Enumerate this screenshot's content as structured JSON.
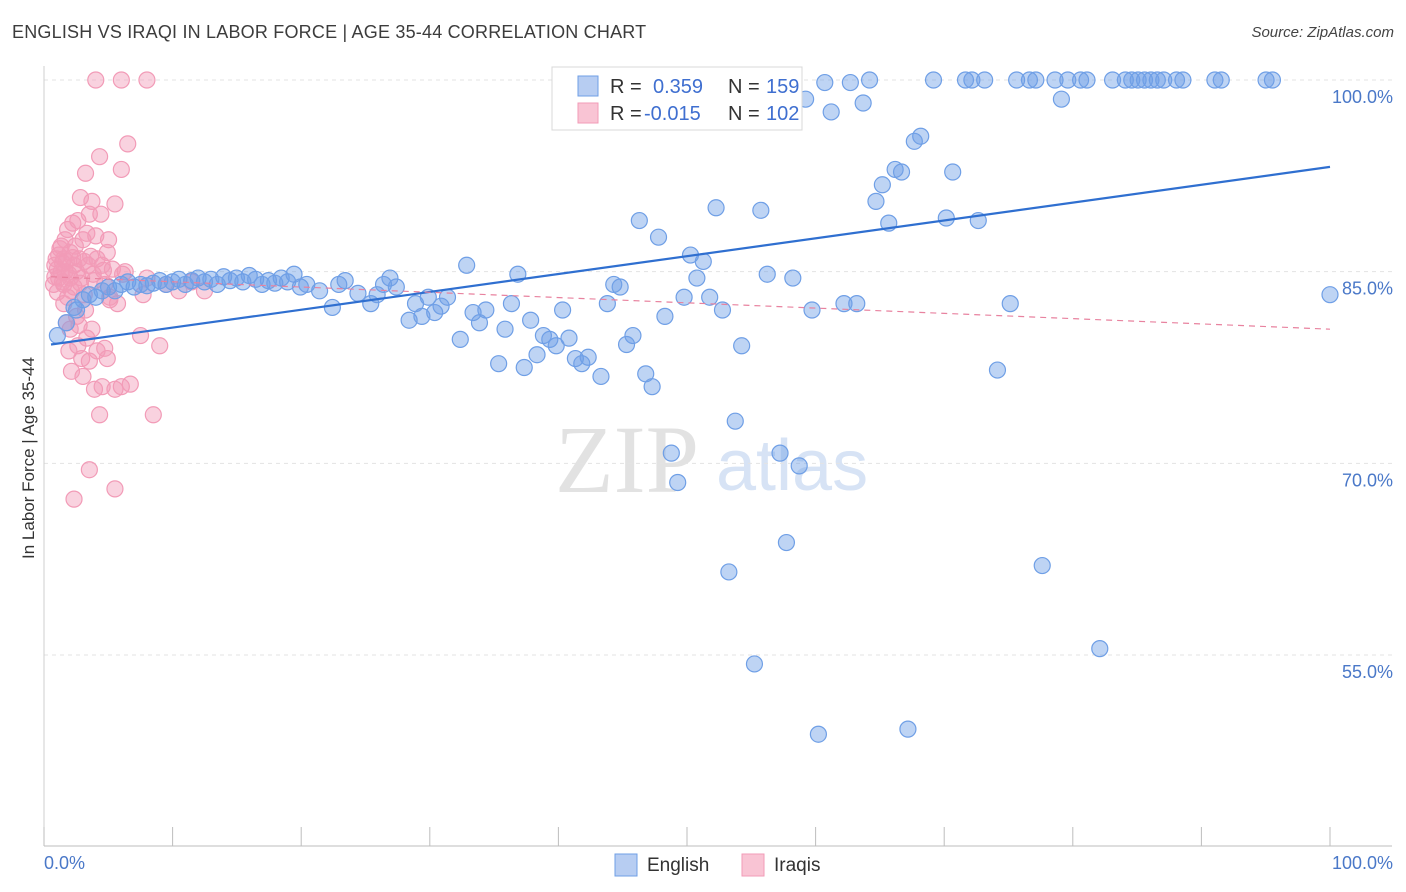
{
  "title": "ENGLISH VS IRAQI IN LABOR FORCE | AGE 35-44 CORRELATION CHART",
  "source": "Source: ZipAtlas.com",
  "watermark": {
    "zip": "ZIP",
    "atlas": "atlas"
  },
  "colors": {
    "english": "#6f9fe6",
    "iraqis": "#f29bb7",
    "english_line": "#2f6fd0",
    "iraqis_line": "#e8829f",
    "axis_label": "#4a78c8"
  },
  "chart_data": {
    "type": "scatter",
    "title": "ENGLISH VS IRAQI IN LABOR FORCE | AGE 35-44 CORRELATION CHART",
    "xlabel": "",
    "ylabel": "In Labor Force | Age 35-44",
    "xlim": [
      0,
      100
    ],
    "ylim": [
      40,
      101.5
    ],
    "x_tick_labels": [
      "0.0%",
      "100.0%"
    ],
    "y_ticks": [
      55,
      70,
      85,
      100
    ],
    "y_tick_labels": [
      "55.0%",
      "70.0%",
      "85.0%",
      "100.0%"
    ],
    "legend": [
      {
        "name": "English",
        "r_label": "R =",
        "r": "0.359",
        "n_label": "N =",
        "n": "159"
      },
      {
        "name": "Iraqis",
        "r_label": "R =",
        "r": "-0.015",
        "n_label": "N =",
        "n": "102"
      }
    ],
    "series": [
      {
        "name": "English",
        "trendline": {
          "x": [
            0,
            100
          ],
          "y": [
            79.3,
            93.2
          ]
        },
        "points": [
          [
            0.5,
            80.0
          ],
          [
            1.2,
            81.0
          ],
          [
            1.8,
            82.2
          ],
          [
            2.0,
            82.0
          ],
          [
            2.5,
            82.8
          ],
          [
            3.0,
            83.2
          ],
          [
            3.5,
            83.0
          ],
          [
            4.0,
            83.5
          ],
          [
            4.5,
            83.8
          ],
          [
            5.0,
            83.5
          ],
          [
            5.5,
            84.0
          ],
          [
            6.0,
            84.2
          ],
          [
            6.5,
            83.8
          ],
          [
            7.0,
            84.0
          ],
          [
            7.5,
            83.9
          ],
          [
            8.0,
            84.1
          ],
          [
            8.5,
            84.3
          ],
          [
            9.0,
            84.0
          ],
          [
            9.5,
            84.2
          ],
          [
            10.0,
            84.4
          ],
          [
            10.5,
            84.0
          ],
          [
            11.0,
            84.3
          ],
          [
            11.5,
            84.5
          ],
          [
            12.0,
            84.2
          ],
          [
            12.5,
            84.4
          ],
          [
            13.0,
            84.0
          ],
          [
            13.5,
            84.6
          ],
          [
            14.0,
            84.3
          ],
          [
            14.5,
            84.5
          ],
          [
            15.0,
            84.2
          ],
          [
            15.5,
            84.7
          ],
          [
            16.0,
            84.4
          ],
          [
            16.5,
            84.0
          ],
          [
            17.0,
            84.3
          ],
          [
            17.5,
            84.1
          ],
          [
            18.0,
            84.5
          ],
          [
            18.5,
            84.2
          ],
          [
            19.0,
            84.8
          ],
          [
            19.5,
            83.8
          ],
          [
            20.0,
            84.0
          ],
          [
            21.0,
            83.5
          ],
          [
            22.0,
            82.2
          ],
          [
            22.5,
            84.0
          ],
          [
            23.0,
            84.3
          ],
          [
            24.0,
            83.3
          ],
          [
            25.0,
            82.5
          ],
          [
            25.5,
            83.2
          ],
          [
            26.0,
            84.0
          ],
          [
            26.5,
            84.5
          ],
          [
            27.0,
            83.8
          ],
          [
            28.0,
            81.2
          ],
          [
            28.5,
            82.5
          ],
          [
            29.0,
            81.5
          ],
          [
            29.5,
            83.0
          ],
          [
            30.0,
            81.8
          ],
          [
            30.5,
            82.3
          ],
          [
            31.0,
            83.0
          ],
          [
            32.0,
            79.7
          ],
          [
            32.5,
            85.5
          ],
          [
            33.0,
            81.8
          ],
          [
            33.5,
            81.0
          ],
          [
            34.0,
            82.0
          ],
          [
            35.0,
            77.8
          ],
          [
            35.5,
            80.5
          ],
          [
            36.0,
            82.5
          ],
          [
            36.5,
            84.8
          ],
          [
            37.0,
            77.5
          ],
          [
            37.5,
            81.2
          ],
          [
            38.0,
            78.5
          ],
          [
            38.5,
            80.0
          ],
          [
            39.0,
            79.7
          ],
          [
            39.5,
            79.2
          ],
          [
            40.0,
            82.0
          ],
          [
            40.5,
            79.8
          ],
          [
            41.0,
            78.2
          ],
          [
            41.5,
            77.8
          ],
          [
            42.0,
            78.3
          ],
          [
            43.0,
            76.8
          ],
          [
            43.5,
            82.5
          ],
          [
            44.0,
            84.0
          ],
          [
            44.5,
            83.8
          ],
          [
            45.0,
            79.3
          ],
          [
            45.5,
            80.0
          ],
          [
            46.0,
            89.0
          ],
          [
            46.5,
            77.0
          ],
          [
            47.0,
            76.0
          ],
          [
            47.5,
            87.7
          ],
          [
            48.0,
            81.5
          ],
          [
            48.5,
            70.8
          ],
          [
            49.0,
            68.5
          ],
          [
            49.5,
            83.0
          ],
          [
            50.0,
            86.3
          ],
          [
            50.5,
            84.5
          ],
          [
            51.0,
            85.8
          ],
          [
            51.5,
            83.0
          ],
          [
            52.0,
            90.0
          ],
          [
            52.5,
            82.0
          ],
          [
            53.0,
            61.5
          ],
          [
            53.5,
            73.3
          ],
          [
            54.0,
            79.2
          ],
          [
            55.0,
            54.3
          ],
          [
            55.5,
            89.8
          ],
          [
            56.0,
            84.8
          ],
          [
            57.0,
            70.8
          ],
          [
            57.5,
            63.8
          ],
          [
            58.0,
            84.5
          ],
          [
            58.5,
            69.8
          ],
          [
            59.0,
            98.5
          ],
          [
            59.5,
            82.0
          ],
          [
            60.0,
            48.8
          ],
          [
            60.5,
            99.8
          ],
          [
            61.0,
            97.5
          ],
          [
            62.0,
            82.5
          ],
          [
            62.5,
            99.8
          ],
          [
            63.0,
            82.5
          ],
          [
            63.5,
            98.2
          ],
          [
            64.0,
            100.0
          ],
          [
            64.5,
            90.5
          ],
          [
            65.0,
            91.8
          ],
          [
            65.5,
            88.8
          ],
          [
            66.0,
            93.0
          ],
          [
            66.5,
            92.8
          ],
          [
            67.0,
            49.2
          ],
          [
            67.5,
            95.2
          ],
          [
            68.0,
            95.6
          ],
          [
            69.0,
            100.0
          ],
          [
            70.0,
            89.2
          ],
          [
            70.5,
            92.8
          ],
          [
            71.5,
            100.0
          ],
          [
            72.0,
            100.0
          ],
          [
            72.5,
            89.0
          ],
          [
            73.0,
            100.0
          ],
          [
            74.0,
            77.3
          ],
          [
            75.0,
            82.5
          ],
          [
            75.5,
            100.0
          ],
          [
            76.5,
            100.0
          ],
          [
            77.0,
            100.0
          ],
          [
            77.5,
            62.0
          ],
          [
            78.5,
            100.0
          ],
          [
            79.0,
            98.5
          ],
          [
            79.5,
            100.0
          ],
          [
            80.5,
            100.0
          ],
          [
            81.0,
            100.0
          ],
          [
            82.0,
            55.5
          ],
          [
            83.0,
            100.0
          ],
          [
            84.0,
            100.0
          ],
          [
            84.5,
            100.0
          ],
          [
            85.0,
            100.0
          ],
          [
            85.5,
            100.0
          ],
          [
            86.0,
            100.0
          ],
          [
            86.5,
            100.0
          ],
          [
            87.0,
            100.0
          ],
          [
            88.0,
            100.0
          ],
          [
            88.5,
            100.0
          ],
          [
            91.0,
            100.0
          ],
          [
            91.5,
            100.0
          ],
          [
            95.0,
            100.0
          ],
          [
            95.5,
            100.0
          ],
          [
            100.0,
            83.2
          ]
        ]
      },
      {
        "name": "Iraqis",
        "trendline": {
          "x": [
            0,
            100
          ],
          "y": [
            84.6,
            80.5
          ]
        },
        "points": [
          [
            0.2,
            84.0
          ],
          [
            0.3,
            85.5
          ],
          [
            0.4,
            86.0
          ],
          [
            0.5,
            85.2
          ],
          [
            0.6,
            84.5
          ],
          [
            0.7,
            86.8
          ],
          [
            0.8,
            85.0
          ],
          [
            0.9,
            84.2
          ],
          [
            1.0,
            86.0
          ],
          [
            1.1,
            87.5
          ],
          [
            1.2,
            85.8
          ],
          [
            1.3,
            88.3
          ],
          [
            1.4,
            84.8
          ],
          [
            1.5,
            86.5
          ],
          [
            1.6,
            83.5
          ],
          [
            1.7,
            88.8
          ],
          [
            1.8,
            85.5
          ],
          [
            1.9,
            87.0
          ],
          [
            2.0,
            85.0
          ],
          [
            2.1,
            89.0
          ],
          [
            2.2,
            86.0
          ],
          [
            2.3,
            90.8
          ],
          [
            2.4,
            84.5
          ],
          [
            2.5,
            87.5
          ],
          [
            2.6,
            85.8
          ],
          [
            2.7,
            92.7
          ],
          [
            2.8,
            88.0
          ],
          [
            2.9,
            85.5
          ],
          [
            3.0,
            89.5
          ],
          [
            3.1,
            86.2
          ],
          [
            3.2,
            90.5
          ],
          [
            3.3,
            84.8
          ],
          [
            3.5,
            87.8
          ],
          [
            3.6,
            86.0
          ],
          [
            3.8,
            94.0
          ],
          [
            3.9,
            89.5
          ],
          [
            4.0,
            85.5
          ],
          [
            4.2,
            84.0
          ],
          [
            4.4,
            86.5
          ],
          [
            4.5,
            87.5
          ],
          [
            4.6,
            83.0
          ],
          [
            4.8,
            85.2
          ],
          [
            5.0,
            90.3
          ],
          [
            5.2,
            82.5
          ],
          [
            5.5,
            93.0
          ],
          [
            5.6,
            84.8
          ],
          [
            5.8,
            85.0
          ],
          [
            6.0,
            95.0
          ],
          [
            1.0,
            82.5
          ],
          [
            1.2,
            81.0
          ],
          [
            1.4,
            78.8
          ],
          [
            1.5,
            80.5
          ],
          [
            1.6,
            77.2
          ],
          [
            1.8,
            83.8
          ],
          [
            2.0,
            81.5
          ],
          [
            2.1,
            79.2
          ],
          [
            2.2,
            80.8
          ],
          [
            2.4,
            78.2
          ],
          [
            2.5,
            76.8
          ],
          [
            2.7,
            82.0
          ],
          [
            2.8,
            79.8
          ],
          [
            3.0,
            78.0
          ],
          [
            3.2,
            80.5
          ],
          [
            3.4,
            75.8
          ],
          [
            3.6,
            78.8
          ],
          [
            3.8,
            73.8
          ],
          [
            4.0,
            76.0
          ],
          [
            4.2,
            79.0
          ],
          [
            4.4,
            78.2
          ],
          [
            4.6,
            82.8
          ],
          [
            5.0,
            75.8
          ],
          [
            5.5,
            76.0
          ],
          [
            6.2,
            76.2
          ],
          [
            7.0,
            80.0
          ],
          [
            7.2,
            83.2
          ],
          [
            7.5,
            84.5
          ],
          [
            8.0,
            73.8
          ],
          [
            8.5,
            79.2
          ],
          [
            9.0,
            84.0
          ],
          [
            10.0,
            83.5
          ],
          [
            11.0,
            84.2
          ],
          [
            12.0,
            83.5
          ],
          [
            1.8,
            67.2
          ],
          [
            3.0,
            69.5
          ],
          [
            5.0,
            68.0
          ],
          [
            3.5,
            100.0
          ],
          [
            5.5,
            100.0
          ],
          [
            7.5,
            100.0
          ],
          [
            1.0,
            84.0
          ],
          [
            1.1,
            85.0
          ],
          [
            1.3,
            83.0
          ],
          [
            1.5,
            84.5
          ],
          [
            0.6,
            86.3
          ],
          [
            0.8,
            87.0
          ],
          [
            0.3,
            84.6
          ],
          [
            0.5,
            83.4
          ],
          [
            0.9,
            85.7
          ],
          [
            1.7,
            86.1
          ],
          [
            2.3,
            84.1
          ],
          [
            2.6,
            83.2
          ],
          [
            3.4,
            84.3
          ],
          [
            4.1,
            85.1
          ]
        ]
      }
    ]
  }
}
